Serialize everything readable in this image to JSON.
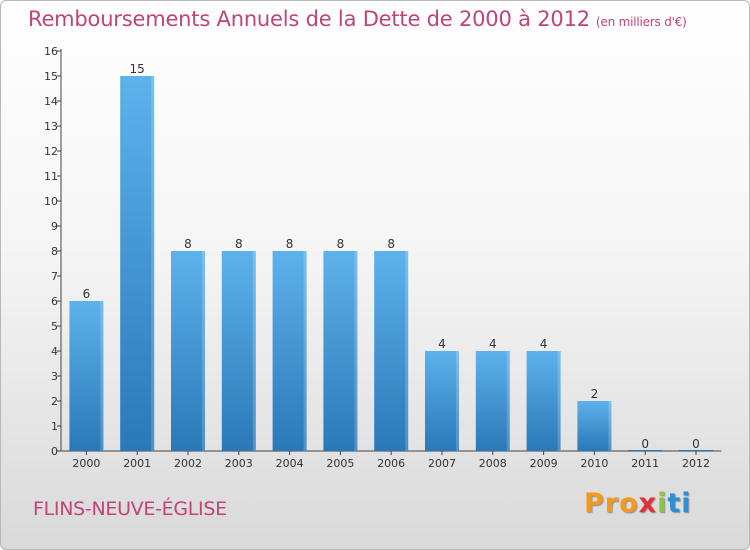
{
  "header": {
    "title": "Remboursements Annuels de la Dette de 2000 à 2012",
    "subtitle": "(en milliers d'€)"
  },
  "footer": {
    "town": "FLINS-NEUVE-ÉGLISE",
    "logo": [
      "Pro",
      "x",
      "i",
      "ti"
    ]
  },
  "colors": {
    "accent": "#c0437a",
    "bar_light": "#5aaee8",
    "bar_dark": "#2a78b8"
  },
  "chart_data": {
    "type": "bar",
    "title": "Remboursements Annuels de la Dette de 2000 à 2012",
    "subtitle": "(en milliers d'€)",
    "xlabel": "",
    "ylabel": "",
    "categories": [
      "2000",
      "2001",
      "2002",
      "2003",
      "2004",
      "2005",
      "2006",
      "2007",
      "2008",
      "2009",
      "2010",
      "2011",
      "2012"
    ],
    "values": [
      6,
      15,
      8,
      8,
      8,
      8,
      8,
      4,
      4,
      4,
      2,
      0,
      0
    ],
    "ylim": [
      0,
      16
    ],
    "yticks": [
      0,
      1,
      2,
      3,
      4,
      5,
      6,
      7,
      8,
      9,
      10,
      11,
      12,
      13,
      14,
      15,
      16
    ],
    "grid": false,
    "legend": "none"
  }
}
